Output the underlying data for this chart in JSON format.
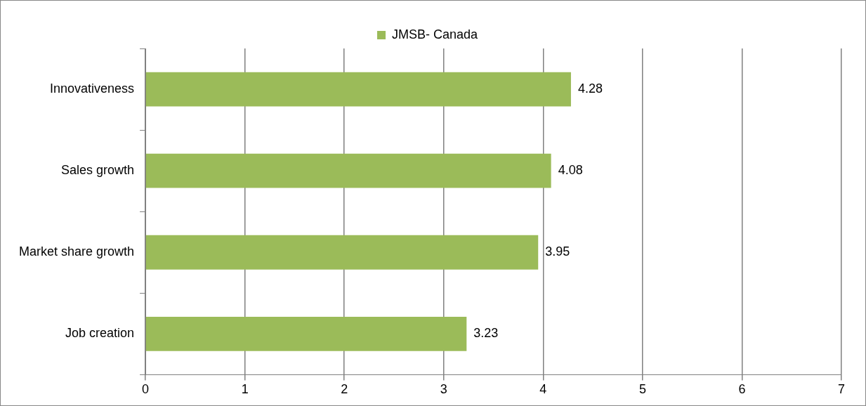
{
  "chart_data": {
    "type": "bar",
    "orientation": "horizontal",
    "categories": [
      "Innovativeness",
      "Sales growth",
      "Market share growth",
      "Job creation"
    ],
    "series": [
      {
        "name": "JMSB- Canada",
        "color": "#9bbb59",
        "values": [
          4.28,
          4.08,
          3.95,
          3.23
        ]
      }
    ],
    "xlim": [
      0,
      7
    ],
    "xticks": [
      0,
      1,
      2,
      3,
      4,
      5,
      6,
      7
    ],
    "grid": "x",
    "legend": "top",
    "data_labels": true
  }
}
